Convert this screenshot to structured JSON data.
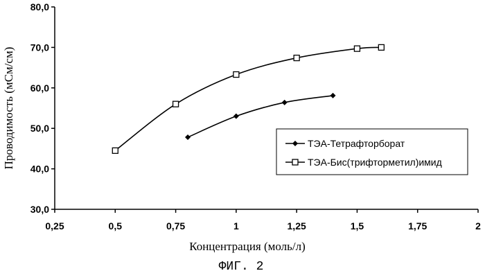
{
  "chart_data": {
    "type": "line",
    "xlabel": "Концентрация (моль/л)",
    "ylabel": "Проводимость (мСм/см)",
    "xlim": [
      0.25,
      2
    ],
    "ylim": [
      30,
      80
    ],
    "x_ticks": [
      0.25,
      0.5,
      0.75,
      1,
      1.25,
      1.5,
      1.75,
      2
    ],
    "x_tick_labels": [
      "0,25",
      "0,5",
      "0,75",
      "1",
      "1,25",
      "1,5",
      "1,75",
      "2"
    ],
    "y_ticks": [
      30,
      40,
      50,
      60,
      70,
      80
    ],
    "y_tick_labels": [
      "30,0",
      "40,0",
      "50,0",
      "60,0",
      "70,0",
      "80,0"
    ],
    "grid": false,
    "legend_position": "right, inside plot",
    "series": [
      {
        "name": "ТЭА-Тетрафторборат",
        "marker": "diamond",
        "x": [
          0.8,
          1.0,
          1.2,
          1.4
        ],
        "y": [
          47.8,
          53.0,
          56.4,
          58.1
        ]
      },
      {
        "name": "ТЭА-Бис(трифторметил)имид",
        "marker": "square",
        "x": [
          0.5,
          0.75,
          1.0,
          1.25,
          1.5,
          1.6
        ],
        "y": [
          44.5,
          56.0,
          63.3,
          67.4,
          69.7,
          70.0
        ]
      }
    ]
  },
  "figure_caption": "ФИГ. 2"
}
